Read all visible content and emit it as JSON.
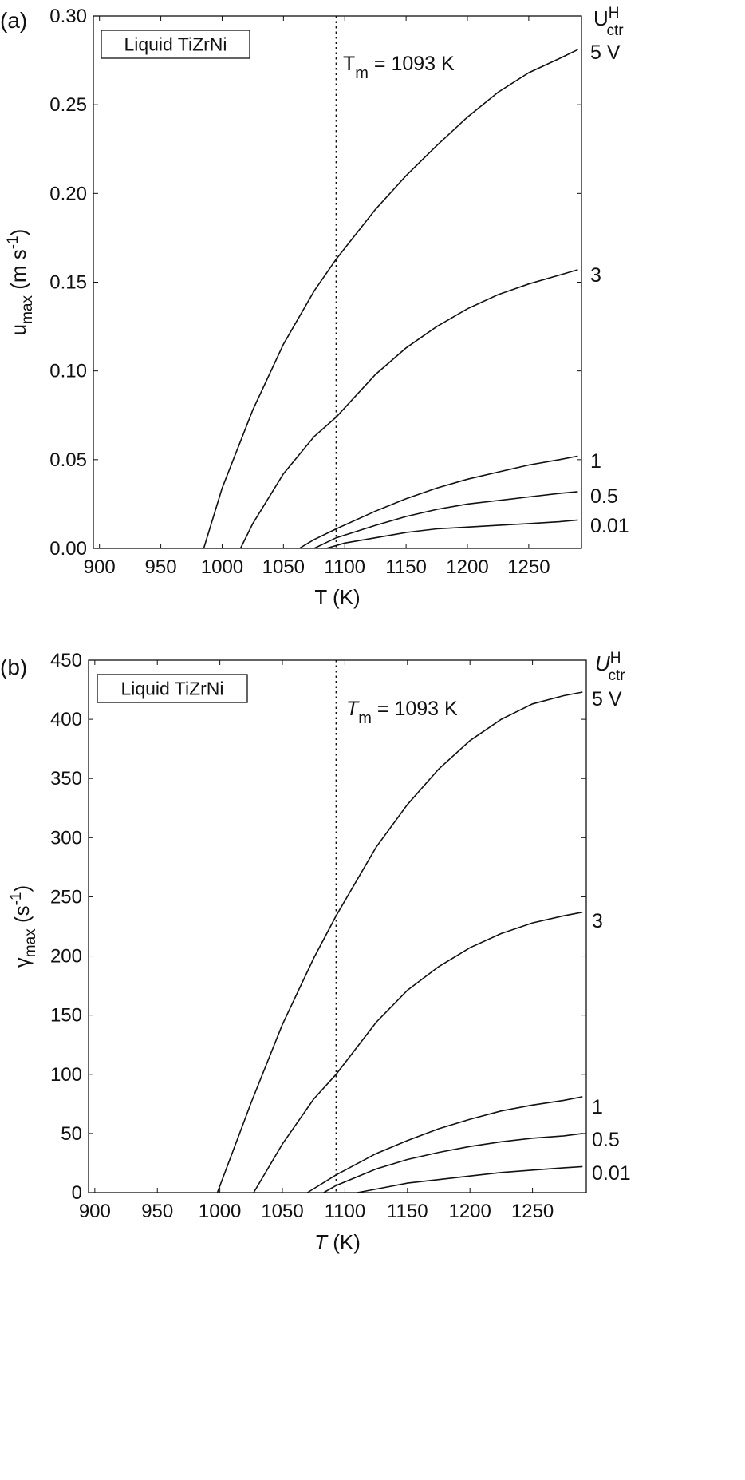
{
  "chart_data": [
    {
      "type": "line",
      "panel_label": "(a)",
      "material_label": "Liquid TiZrNi",
      "tm_label": {
        "sym": "T",
        "sub": "m",
        "rest": " = 1093 K"
      },
      "tm_value": 1093,
      "xlabel": {
        "main": "T (K)",
        "italic": false
      },
      "ylabel": {
        "main": "u",
        "sub": "max",
        "rest": " (m s",
        "sup": "-1",
        "close": ")"
      },
      "legend_title": {
        "main": "U",
        "sup": "H",
        "sub": "ctr",
        "italic": false
      },
      "xlim": [
        895,
        1293
      ],
      "ylim": [
        0,
        0.3
      ],
      "xticks": [
        900,
        950,
        1000,
        1050,
        1100,
        1150,
        1200,
        1250
      ],
      "yticks": [
        "0.00",
        "0.05",
        "0.10",
        "0.15",
        "0.20",
        "0.25",
        "0.30"
      ],
      "series": [
        {
          "name": "5 V",
          "x": [
            985,
            1000,
            1025,
            1050,
            1075,
            1093,
            1125,
            1150,
            1175,
            1200,
            1225,
            1250,
            1275,
            1290
          ],
          "y": [
            0,
            0.034,
            0.078,
            0.115,
            0.145,
            0.163,
            0.191,
            0.21,
            0.227,
            0.243,
            0.257,
            0.268,
            0.276,
            0.281
          ]
        },
        {
          "name": "3",
          "x": [
            1015,
            1025,
            1050,
            1075,
            1093,
            1125,
            1150,
            1175,
            1200,
            1225,
            1250,
            1275,
            1290
          ],
          "y": [
            0,
            0.014,
            0.042,
            0.063,
            0.074,
            0.098,
            0.113,
            0.125,
            0.135,
            0.143,
            0.149,
            0.154,
            0.157
          ]
        },
        {
          "name": "1",
          "x": [
            1063,
            1075,
            1093,
            1125,
            1150,
            1175,
            1200,
            1225,
            1250,
            1275,
            1290
          ],
          "y": [
            0,
            0.005,
            0.011,
            0.021,
            0.028,
            0.034,
            0.039,
            0.043,
            0.047,
            0.05,
            0.052
          ]
        },
        {
          "name": "0.5",
          "x": [
            1075,
            1093,
            1125,
            1150,
            1175,
            1200,
            1225,
            1250,
            1275,
            1290
          ],
          "y": [
            0,
            0.006,
            0.013,
            0.018,
            0.022,
            0.025,
            0.027,
            0.029,
            0.031,
            0.032
          ]
        },
        {
          "name": "0.01",
          "x": [
            1085,
            1100,
            1125,
            1150,
            1175,
            1200,
            1225,
            1250,
            1275,
            1290
          ],
          "y": [
            0,
            0.003,
            0.006,
            0.009,
            0.011,
            0.012,
            0.013,
            0.014,
            0.015,
            0.016
          ]
        }
      ]
    },
    {
      "type": "line",
      "panel_label": "(b)",
      "material_label": "Liquid TiZrNi",
      "tm_label": {
        "sym": "T",
        "sub": "m",
        "rest": " = 1093 K"
      },
      "tm_value": 1093,
      "xlabel": {
        "main": "T",
        "rest": " (K)",
        "italic": true
      },
      "ylabel": {
        "main": "γ",
        "sub": "max",
        "rest": " (s",
        "sup": "-1",
        "close": ")"
      },
      "legend_title": {
        "main": "U",
        "sup": "H",
        "sub": "ctr",
        "italic": true
      },
      "xlim": [
        895,
        1293
      ],
      "ylim": [
        0,
        450
      ],
      "xticks": [
        900,
        950,
        1000,
        1050,
        1100,
        1150,
        1200,
        1250
      ],
      "yticks": [
        "0",
        "50",
        "100",
        "150",
        "200",
        "250",
        "300",
        "350",
        "400",
        "450"
      ],
      "series": [
        {
          "name": "5 V",
          "x": [
            998,
            1025,
            1050,
            1075,
            1093,
            1125,
            1150,
            1175,
            1200,
            1225,
            1250,
            1275,
            1290
          ],
          "y": [
            0,
            76,
            142,
            198,
            234,
            292,
            328,
            358,
            382,
            400,
            413,
            420,
            423
          ]
        },
        {
          "name": "3",
          "x": [
            1027,
            1050,
            1075,
            1093,
            1125,
            1150,
            1175,
            1200,
            1225,
            1250,
            1275,
            1290
          ],
          "y": [
            0,
            41,
            79,
            100,
            144,
            171,
            191,
            207,
            219,
            228,
            234,
            237
          ]
        },
        {
          "name": "1",
          "x": [
            1070,
            1093,
            1125,
            1150,
            1175,
            1200,
            1225,
            1250,
            1275,
            1290
          ],
          "y": [
            0,
            15,
            33,
            44,
            54,
            62,
            69,
            74,
            78,
            81
          ]
        },
        {
          "name": "0.5",
          "x": [
            1083,
            1093,
            1125,
            1150,
            1175,
            1200,
            1225,
            1250,
            1275,
            1290
          ],
          "y": [
            0,
            6,
            20,
            28,
            34,
            39,
            43,
            46,
            48,
            50
          ]
        },
        {
          "name": "0.01",
          "x": [
            1110,
            1125,
            1150,
            1175,
            1200,
            1225,
            1250,
            1275,
            1290
          ],
          "y": [
            0,
            3,
            8,
            11,
            14,
            17,
            19,
            21,
            22
          ]
        }
      ]
    }
  ]
}
